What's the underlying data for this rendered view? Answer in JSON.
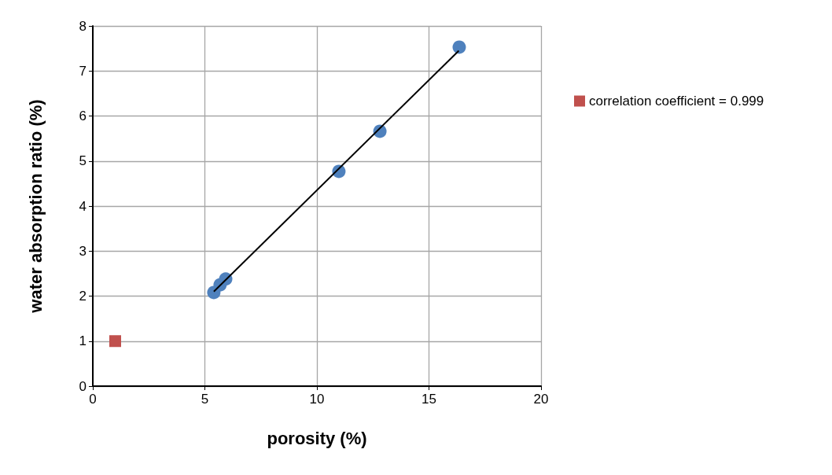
{
  "chart_data": {
    "type": "scatter",
    "xlabel": "porosity (%)",
    "ylabel": "water absorption ratio (%)",
    "xlim": [
      0,
      20
    ],
    "xticks": [
      0,
      5,
      10,
      15,
      20
    ],
    "ylim": [
      0,
      8
    ],
    "yticks": [
      0,
      1,
      2,
      3,
      4,
      5,
      6,
      7,
      8
    ],
    "grid": true,
    "legend": "right",
    "series": [
      {
        "color": "#4f81bd",
        "marker": "circle",
        "x": [
          5.4,
          5.68,
          5.93,
          10.98,
          12.81,
          16.35
        ],
        "values": [
          2.08,
          2.25,
          2.38,
          4.77,
          5.66,
          7.53
        ]
      },
      {
        "type": "line",
        "color": "#000000",
        "marker": "none",
        "x": [
          5.4,
          16.33
        ],
        "values": [
          2.1,
          7.45
        ]
      },
      {
        "name": "correlation coefficient = 0.999",
        "color": "#c0504d",
        "marker": "square",
        "x": [
          1
        ],
        "values": [
          1
        ]
      }
    ]
  }
}
